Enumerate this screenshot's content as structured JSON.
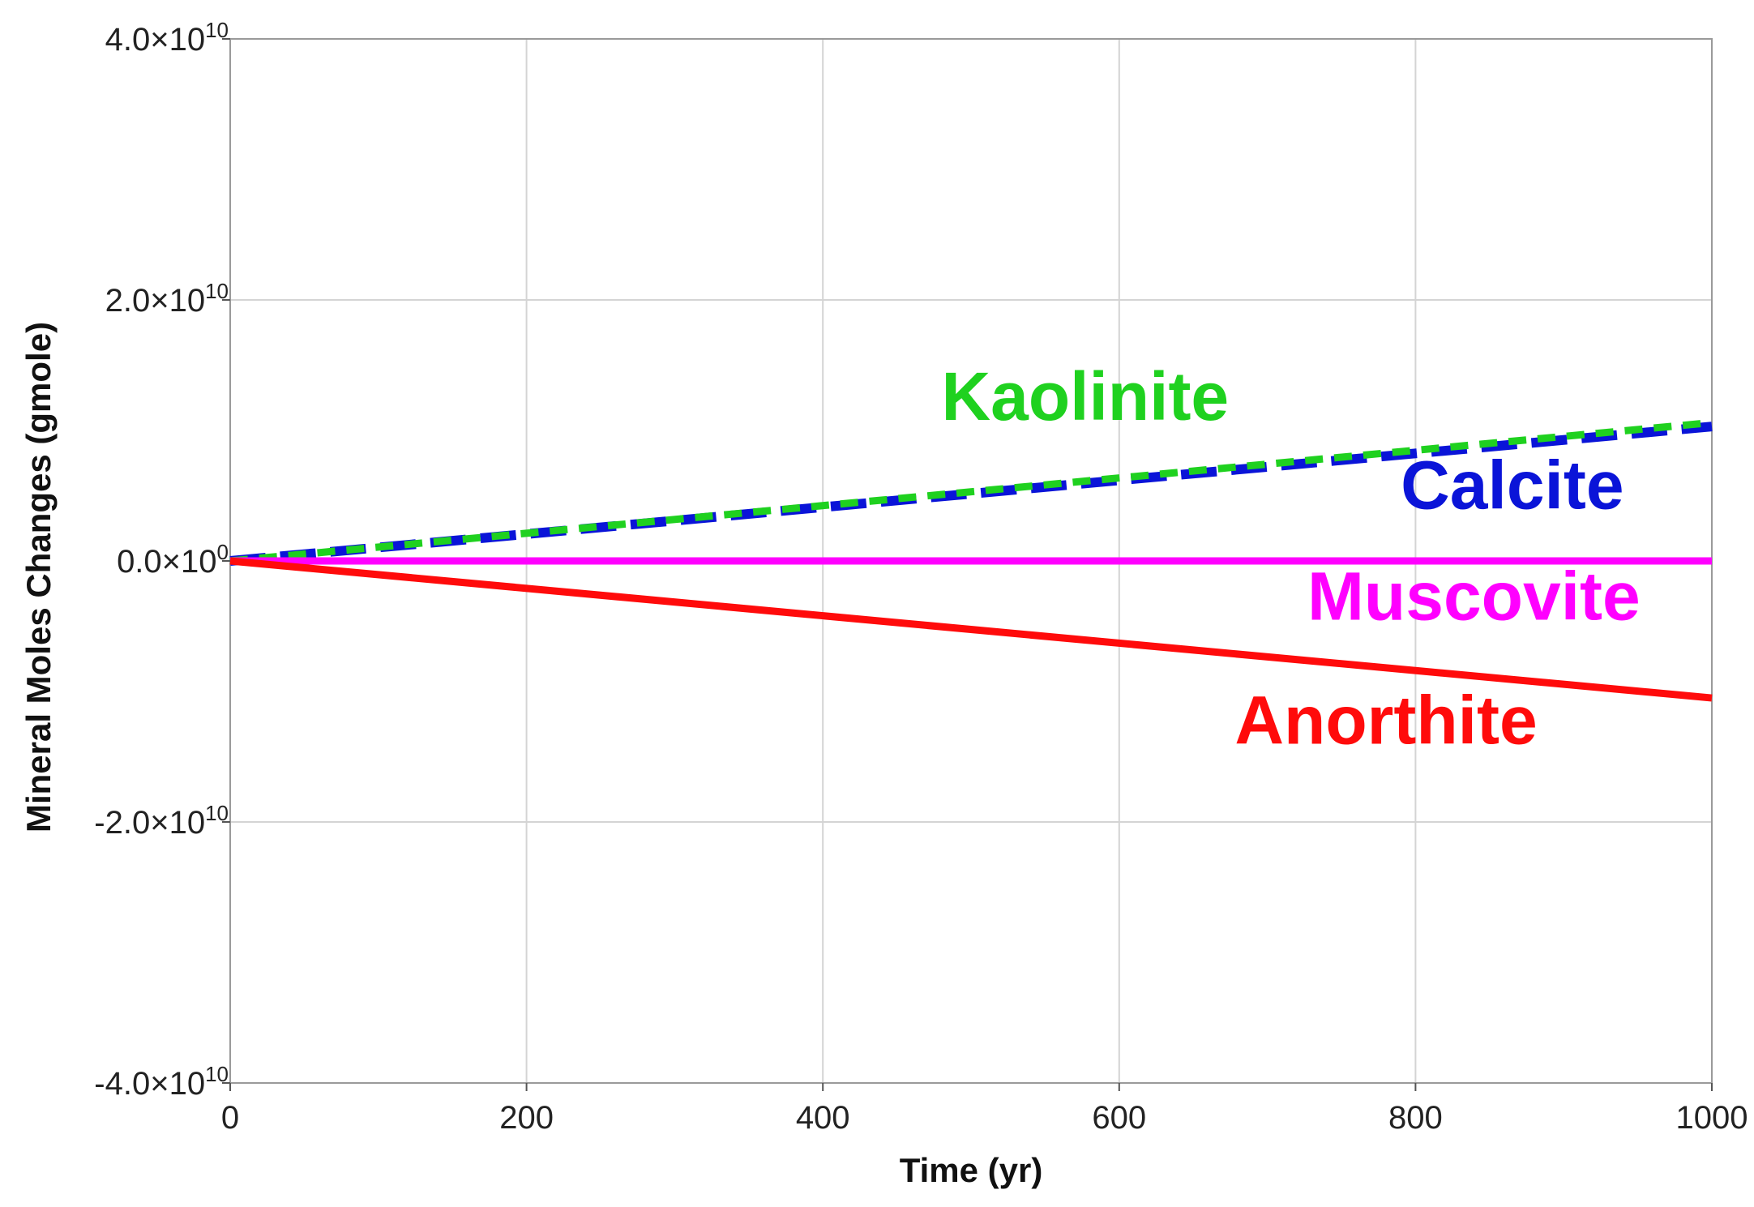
{
  "chart_data": {
    "type": "line",
    "xlabel": "Time (yr)",
    "ylabel": "Mineral Moles Changes (gmole)",
    "xlim": [
      0,
      1000
    ],
    "ylim": [
      -40000000000,
      40000000000
    ],
    "grid": true,
    "x_ticks": [
      "0",
      "200",
      "400",
      "600",
      "800",
      "1000"
    ],
    "x_tick_values": [
      0,
      200,
      400,
      600,
      800,
      1000
    ],
    "y_ticks": [
      {
        "value": 40000000000,
        "mantissa": "4.0",
        "times": "×10",
        "exp": "10"
      },
      {
        "value": 20000000000,
        "mantissa": "2.0",
        "times": "×10",
        "exp": "10"
      },
      {
        "value": 0,
        "mantissa": "0.0",
        "times": "×10",
        "exp": "0"
      },
      {
        "value": -20000000000,
        "mantissa": "-2.0",
        "times": "×10",
        "exp": "10"
      },
      {
        "value": -40000000000,
        "mantissa": "-4.0",
        "times": "×10",
        "exp": "10"
      }
    ],
    "series": [
      {
        "name": "Calcite",
        "color": "#0a14d8",
        "dash": "long-dash",
        "x": [
          0,
          1000
        ],
        "y": [
          0,
          10300000000
        ]
      },
      {
        "name": "Kaolinite",
        "color": "#1fd11f",
        "dash": "short-dash",
        "x": [
          0,
          1000
        ],
        "y": [
          0,
          10600000000
        ]
      },
      {
        "name": "Muscovite",
        "color": "#ff00ff",
        "dash": "solid",
        "x": [
          0,
          1000
        ],
        "y": [
          0,
          0
        ]
      },
      {
        "name": "Anorthite",
        "color": "#ff0b0b",
        "dash": "solid",
        "x": [
          0,
          1000
        ],
        "y": [
          0,
          -10500000000
        ]
      }
    ],
    "annotations": [
      {
        "text": "Kaolinite",
        "color": "#1fd11f",
        "x": 480,
        "y": 10800000000
      },
      {
        "text": "Calcite",
        "color": "#0a14d8",
        "x": 790,
        "y": 4000000000
      },
      {
        "text": "Muscovite",
        "color": "#ff00ff",
        "x": 727,
        "y": -4500000000
      },
      {
        "text": "Anorthite",
        "color": "#ff0b0b",
        "x": 678,
        "y": -14000000000
      }
    ]
  }
}
